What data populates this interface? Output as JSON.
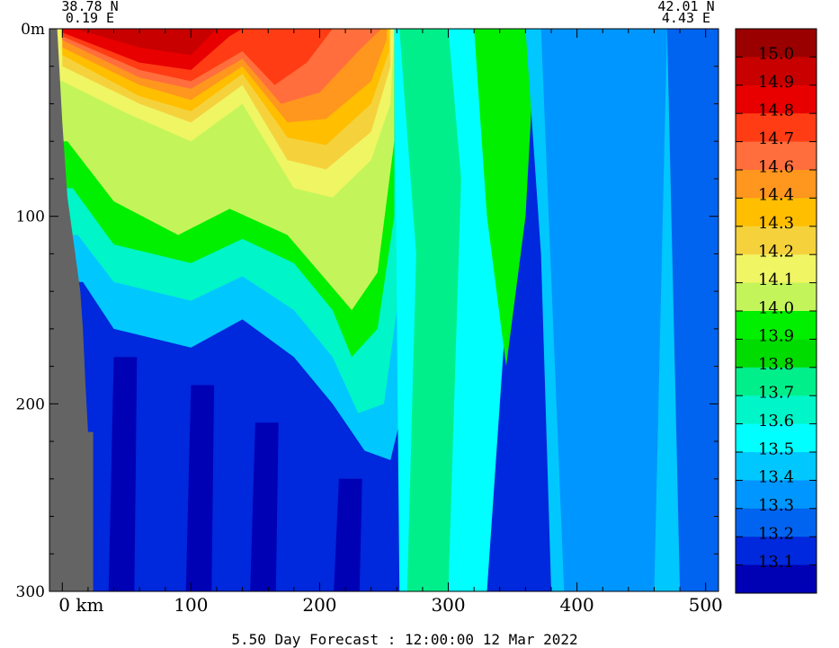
{
  "chart_data": {
    "type": "heatmap",
    "corner_labels": {
      "left_lat": "38.78 N",
      "left_lon": "0.19 E",
      "right_lat": "42.01 N",
      "right_lon": "4.43 E"
    },
    "y_axis": {
      "range": [
        0,
        300
      ],
      "inverted": true,
      "ticks": [
        0,
        100,
        200,
        300
      ],
      "tick_labels": [
        "0m",
        "100",
        "200",
        "300"
      ],
      "minor_step": 20
    },
    "x_axis": {
      "range": [
        -10,
        510
      ],
      "ticks": [
        0,
        100,
        200,
        300,
        400,
        500
      ],
      "tick_labels": [
        "0 km",
        "100",
        "200",
        "300",
        "400",
        "500"
      ],
      "minor_step": 20
    },
    "footer": "5.50 Day Forecast : 12:00:00  12 Mar 2022",
    "colorbar": {
      "labels": [
        "15.0",
        "14.9",
        "14.8",
        "14.7",
        "14.6",
        "14.4",
        "14.3",
        "14.2",
        "14.1",
        "14.0",
        "13.9",
        "13.8",
        "13.7",
        "13.6",
        "13.5",
        "13.4",
        "13.3",
        "13.2",
        "13.1"
      ],
      "colors": [
        "#9a0000",
        "#c80000",
        "#e80000",
        "#ff3c14",
        "#ff6e3c",
        "#ff961e",
        "#ffbe00",
        "#f5d23c",
        "#f0f564",
        "#c3f55a",
        "#00f000",
        "#00dc00",
        "#00ef8a",
        "#00f5c8",
        "#00ffff",
        "#00c8ff",
        "#0096ff",
        "#0064f0",
        "#0028dc",
        "#0000b4"
      ]
    },
    "land_color": "#646464",
    "land_profile": [
      [
        -10,
        0
      ],
      [
        -4,
        0
      ],
      [
        0,
        50
      ],
      [
        4,
        90
      ],
      [
        8,
        110
      ],
      [
        12,
        130
      ],
      [
        14,
        140
      ],
      [
        16,
        160
      ],
      [
        18,
        190
      ],
      [
        20,
        215
      ],
      [
        24,
        215
      ],
      [
        24,
        300
      ],
      [
        -10,
        300
      ]
    ],
    "bands": [
      {
        "value": 14.1,
        "profile": [
          [
            0,
            28
          ],
          [
            50,
            45
          ],
          [
            100,
            60
          ],
          [
            140,
            40
          ],
          [
            180,
            85
          ],
          [
            210,
            90
          ],
          [
            240,
            70
          ],
          [
            255,
            40
          ],
          [
            258,
            0
          ]
        ]
      },
      {
        "value": 14.0,
        "profile": [
          [
            4,
            60
          ],
          [
            40,
            92
          ],
          [
            90,
            110
          ],
          [
            130,
            96
          ],
          [
            175,
            110
          ],
          [
            200,
            130
          ],
          [
            225,
            150
          ],
          [
            245,
            130
          ],
          [
            258,
            60
          ]
        ]
      },
      {
        "value": 13.9,
        "profile": [
          [
            8,
            85
          ],
          [
            40,
            115
          ],
          [
            100,
            125
          ],
          [
            140,
            112
          ],
          [
            180,
            125
          ],
          [
            210,
            150
          ],
          [
            225,
            175
          ],
          [
            245,
            160
          ],
          [
            258,
            100
          ]
        ]
      },
      {
        "value": 13.6,
        "profile": [
          [
            12,
            110
          ],
          [
            40,
            135
          ],
          [
            100,
            145
          ],
          [
            140,
            132
          ],
          [
            180,
            150
          ],
          [
            210,
            175
          ],
          [
            230,
            205
          ],
          [
            250,
            200
          ],
          [
            260,
            150
          ]
        ]
      },
      {
        "value": 13.4,
        "profile": [
          [
            16,
            135
          ],
          [
            40,
            160
          ],
          [
            100,
            170
          ],
          [
            140,
            155
          ],
          [
            180,
            175
          ],
          [
            210,
            200
          ],
          [
            235,
            225
          ],
          [
            255,
            230
          ],
          [
            262,
            210
          ]
        ]
      }
    ]
  }
}
